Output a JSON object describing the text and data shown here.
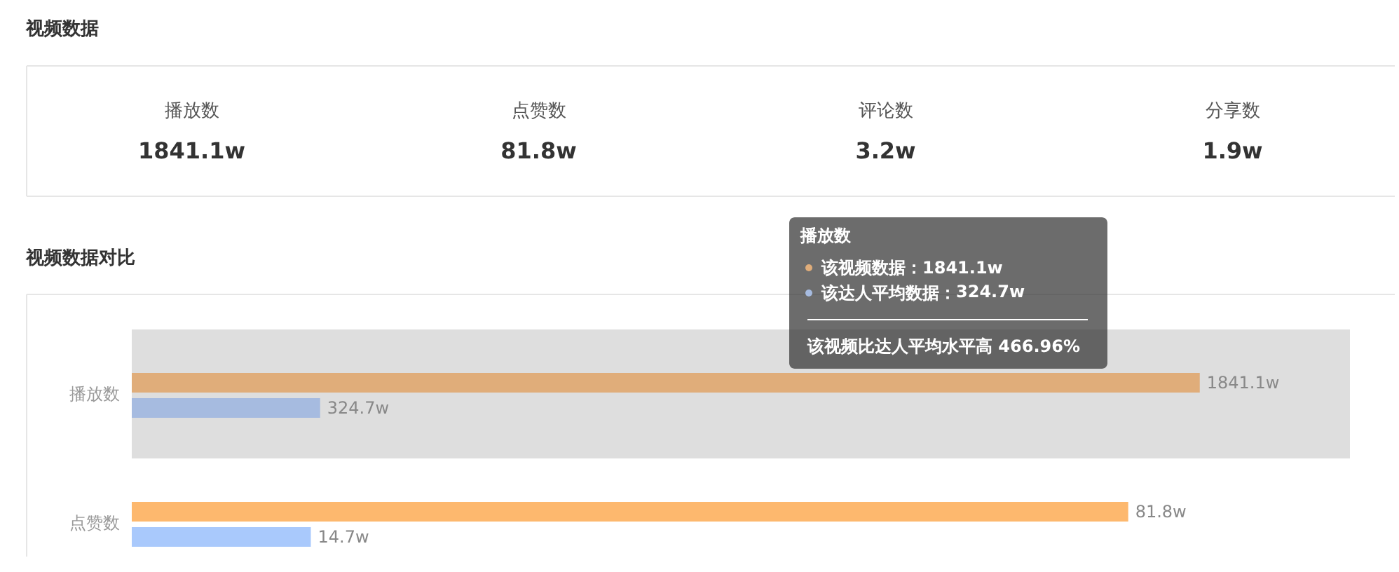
{
  "chart_data": [
    {
      "type": "other",
      "title": "视频数据",
      "categories": [
        "播放数",
        "点赞数",
        "评论数",
        "分享数"
      ],
      "value_labels": [
        "1841.1w",
        "81.8w",
        "3.2w",
        "1.9w"
      ]
    },
    {
      "type": "bar",
      "orientation": "horizontal",
      "title": "视频数据对比",
      "categories": [
        "播放数"
      ],
      "series": [
        {
          "name": "该视频数据：",
          "color": "#e0ad7a",
          "values": [
            1841.1
          ],
          "value_labels": [
            "1841.1w"
          ]
        },
        {
          "name": "该达人平均数据：",
          "color": "#a6bbe0",
          "values": [
            324.7
          ],
          "value_labels": [
            "324.7w"
          ]
        }
      ],
      "xlim": [
        0,
        2100
      ],
      "tick_labels": "y",
      "legend": "top",
      "legend_title": "播放数",
      "bands": [
        {
          "axis": "x",
          "from": 0,
          "to": 2100,
          "color": "#dedede"
        }
      ],
      "annotations": [
        "该视频比达人平均水平高 466.96%"
      ]
    },
    {
      "type": "bar",
      "orientation": "horizontal",
      "categories": [
        "点赞数"
      ],
      "series": [
        {
          "color": "#fdb86e",
          "values": [
            81.8
          ],
          "value_labels": [
            "81.8w"
          ]
        },
        {
          "color": "#a9c9fc",
          "values": [
            14.7
          ],
          "value_labels": [
            "14.7w"
          ]
        }
      ],
      "tick_labels": "y"
    }
  ]
}
